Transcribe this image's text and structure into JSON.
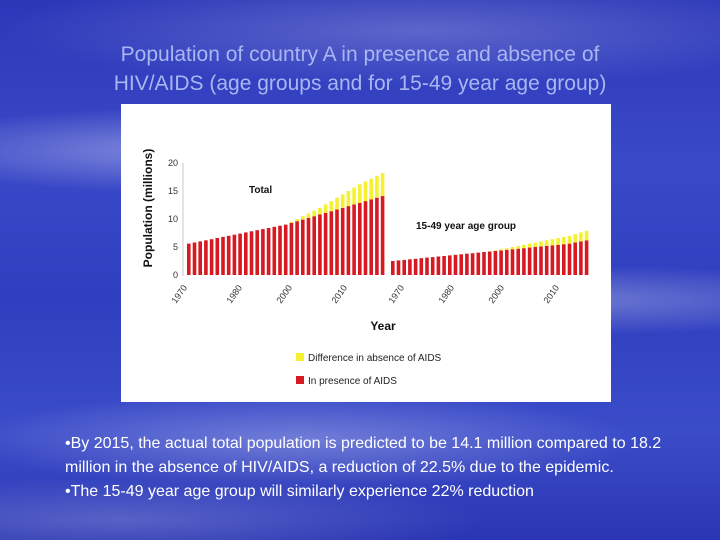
{
  "slide": {
    "title_line1": "Population of country A in presence and absence of",
    "title_line2": "HIV/AIDS (age groups and for 15-49 year age group)",
    "bullets": [
      "•By 2015, the actual total population is predicted to be 14.1 million compared to 18.2 million in the absence of HIV/AIDS, a reduction of 22.5% due to the epidemic.",
      "•The 15-49 year age group will similarly experience 22% reduction"
    ]
  },
  "colors": {
    "present": "#d71a22",
    "difference": "#f4f230",
    "title": "#a9b6f2",
    "text": "#ffffff"
  },
  "chart_data": {
    "type": "bar",
    "stacked": true,
    "xlabel": "Year",
    "ylabel": "Population (millions)",
    "ylim": [
      0,
      20
    ],
    "yticks": [
      "0",
      "5",
      "10",
      "15",
      "20"
    ],
    "xticks": [
      "1970",
      "1980",
      "2000",
      "2010",
      "1970",
      "1980",
      "2000",
      "2010"
    ],
    "legend_position": "bottom",
    "annotations": [
      "Total",
      "15-49 year age group"
    ],
    "series": [
      {
        "name": "Difference in absence of AIDS",
        "color": "#f4f230"
      },
      {
        "name": "In presence of AIDS",
        "color": "#d71a22"
      }
    ],
    "groups": [
      {
        "label": "Total",
        "present": [
          5.6,
          5.8,
          6.0,
          6.2,
          6.4,
          6.6,
          6.8,
          7.0,
          7.2,
          7.4,
          7.6,
          7.8,
          8.0,
          8.2,
          8.4,
          8.6,
          8.8,
          9.0,
          9.3,
          9.6,
          9.9,
          10.2,
          10.5,
          10.8,
          11.1,
          11.4,
          11.7,
          12.0,
          12.3,
          12.6,
          12.9,
          13.2,
          13.5,
          13.8,
          14.1
        ],
        "difference": [
          0,
          0,
          0,
          0,
          0,
          0,
          0,
          0,
          0,
          0,
          0,
          0,
          0,
          0,
          0,
          0,
          0,
          0,
          0.2,
          0.4,
          0.6,
          0.8,
          1.0,
          1.2,
          1.5,
          1.8,
          2.1,
          2.4,
          2.7,
          3.0,
          3.3,
          3.5,
          3.7,
          3.9,
          4.1
        ]
      },
      {
        "label": "15-49 year age group",
        "present": [
          2.5,
          2.6,
          2.7,
          2.8,
          2.9,
          3.0,
          3.1,
          3.2,
          3.3,
          3.4,
          3.5,
          3.6,
          3.7,
          3.8,
          3.9,
          4.0,
          4.1,
          4.2,
          4.3,
          4.4,
          4.5,
          4.6,
          4.7,
          4.8,
          4.9,
          5.0,
          5.1,
          5.2,
          5.3,
          5.4,
          5.5,
          5.6,
          5.8,
          6.0,
          6.2
        ],
        "difference": [
          0,
          0,
          0,
          0,
          0,
          0,
          0,
          0,
          0,
          0,
          0,
          0,
          0,
          0,
          0,
          0,
          0,
          0,
          0.1,
          0.2,
          0.3,
          0.4,
          0.5,
          0.6,
          0.7,
          0.8,
          0.9,
          1.0,
          1.1,
          1.2,
          1.3,
          1.4,
          1.5,
          1.6,
          1.7
        ]
      }
    ]
  }
}
